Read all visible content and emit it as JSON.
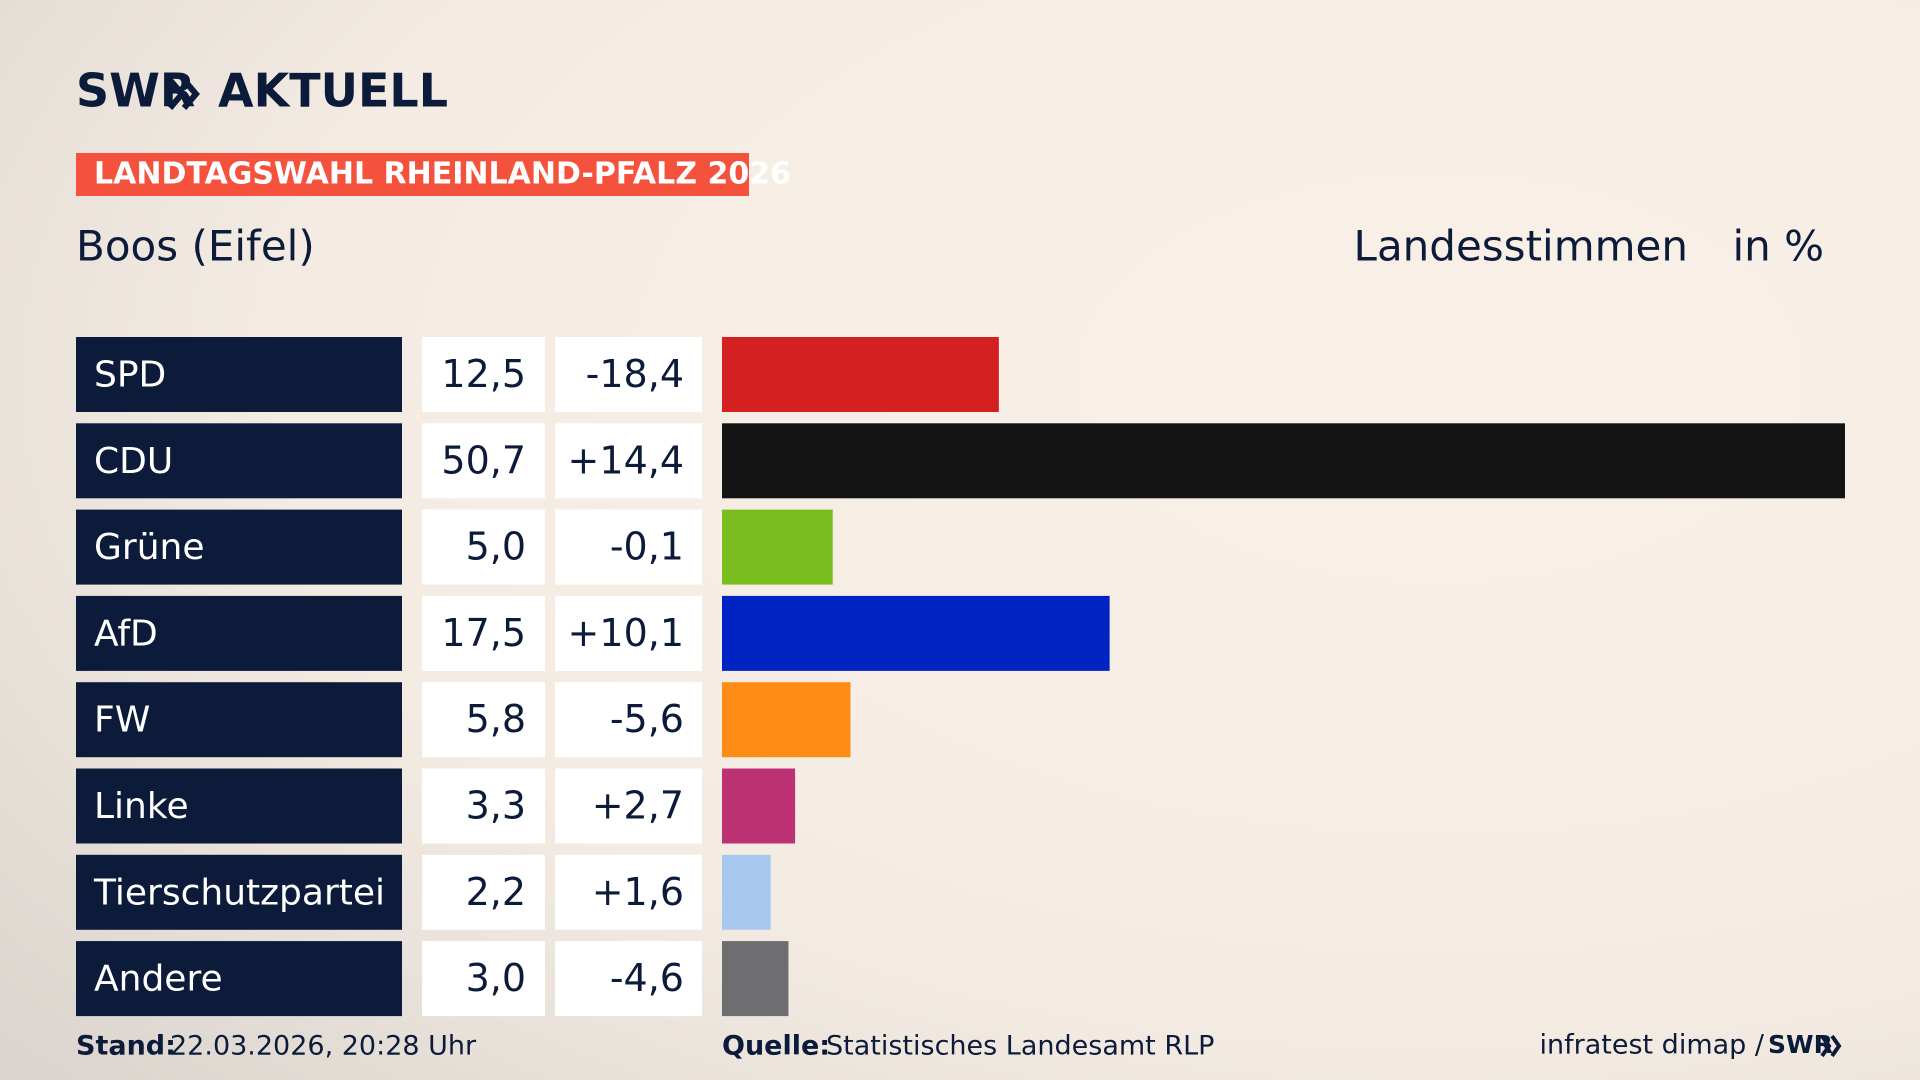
{
  "header": {
    "logo_left": "SWR",
    "logo_right": "AKTUELL",
    "banner": "LANDTAGSWAHL RHEINLAND-PFALZ 2026"
  },
  "chart_data": {
    "type": "bar",
    "orientation": "horizontal",
    "title": "Boos (Eifel)",
    "subtitle": "Landesstimmen",
    "unit": "in %",
    "categories": [
      "SPD",
      "CDU",
      "Grüne",
      "AfD",
      "FW",
      "Linke",
      "Tierschutzpartei",
      "Andere"
    ],
    "values": [
      12.5,
      50.7,
      5.0,
      17.5,
      5.8,
      3.3,
      2.2,
      3.0
    ],
    "value_labels": [
      "12,5",
      "50,7",
      "5,0",
      "17,5",
      "5,8",
      "3,3",
      "2,2",
      "3,0"
    ],
    "changes": [
      -18.4,
      14.4,
      -0.1,
      10.1,
      -5.6,
      2.7,
      1.6,
      -4.6
    ],
    "change_labels": [
      "-18,4",
      "+14,4",
      "-0,1",
      "+10,1",
      "-5,6",
      "+2,7",
      "+1,6",
      "-4,6"
    ],
    "colors": [
      "#d42020",
      "#141414",
      "#7bbd1f",
      "#0023c4",
      "#ff8c16",
      "#bd3275",
      "#a9c8ef",
      "#6e6e70"
    ]
  },
  "footer": {
    "stand_label": "Stand:",
    "stand": "22.03.2026, 20:28 Uhr",
    "source_label": "Quelle:",
    "source": "Statistisches Landesamt RLP",
    "credit": "infratest dimap /",
    "credit_logo": "SWR"
  }
}
